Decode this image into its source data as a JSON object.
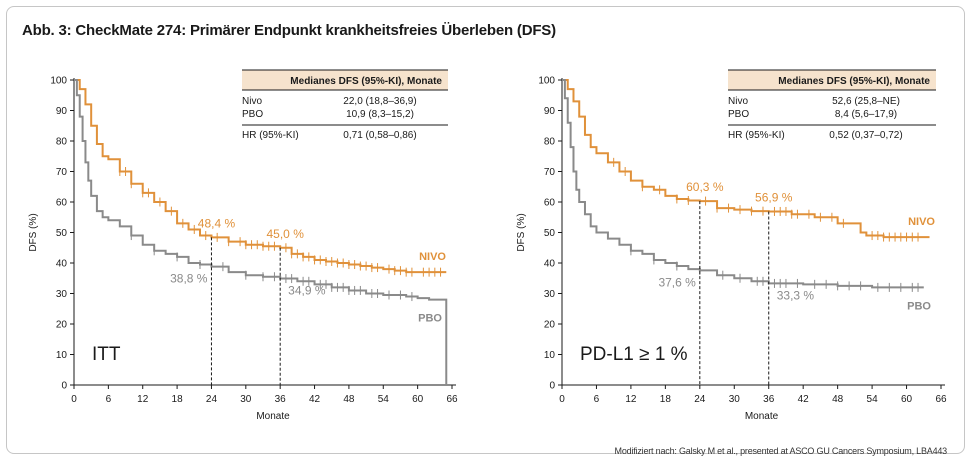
{
  "figure": {
    "title": "Abb. 3: CheckMate 274: Primärer Endpunkt krankheitsfreies Überleben (DFS)",
    "source": "Modifiziert nach: Galsky M et al., presented at ASCO GU Cancers Symposium, LBA443"
  },
  "colors": {
    "nivo": "#e0913a",
    "pbo": "#8a8a8a",
    "table_header_bg": "#f6e3cd"
  },
  "chart_data": [
    {
      "type": "line",
      "panel_label": "ITT",
      "xlabel": "Monate",
      "ylabel": "DFS (%)",
      "xlim": [
        0,
        66
      ],
      "ylim": [
        0,
        100
      ],
      "xticks": [
        0,
        6,
        12,
        18,
        24,
        30,
        36,
        42,
        48,
        54,
        60,
        66
      ],
      "yticks": [
        0,
        10,
        20,
        30,
        40,
        50,
        60,
        70,
        80,
        90,
        100
      ],
      "series": [
        {
          "name": "NIVO",
          "color": "#e0913a",
          "x": [
            0,
            1,
            2,
            3,
            4,
            5,
            6,
            8,
            10,
            12,
            14,
            16,
            18,
            20,
            22,
            24,
            27,
            30,
            33,
            36,
            38,
            40,
            42,
            44,
            46,
            48,
            50,
            52,
            54,
            56,
            58,
            60,
            62,
            65
          ],
          "y": [
            100,
            97,
            92,
            85,
            79,
            75,
            74,
            70,
            66,
            63,
            60,
            57,
            53,
            51,
            49,
            48.4,
            47,
            46,
            45.5,
            45,
            43,
            42,
            41,
            40.5,
            40,
            39.5,
            39,
            38.5,
            38,
            37.5,
            37,
            37,
            37,
            37
          ],
          "censor_x": [
            8,
            9,
            10,
            12,
            13,
            15,
            17,
            19,
            21,
            23,
            25,
            27,
            29,
            30,
            31,
            32,
            33,
            34,
            35,
            37,
            38,
            39,
            40,
            41,
            42,
            43,
            44,
            45,
            46,
            47,
            48,
            49,
            50,
            51,
            52,
            53,
            55,
            56,
            57,
            58,
            59,
            61,
            62,
            63,
            64
          ]
        },
        {
          "name": "PBO",
          "color": "#8a8a8a",
          "x": [
            0,
            0.5,
            1,
            1.5,
            2,
            2.5,
            3,
            4,
            5,
            6,
            8,
            10,
            12,
            14,
            16,
            18,
            20,
            22,
            24,
            27,
            30,
            33,
            36,
            39,
            42,
            45,
            48,
            51,
            54,
            58,
            60,
            62,
            65,
            65
          ],
          "y": [
            100,
            95,
            88,
            80,
            73,
            67,
            62,
            57,
            55,
            54,
            52,
            49,
            46,
            44,
            43,
            42,
            40,
            39.5,
            38.8,
            37,
            36,
            35.5,
            34.9,
            34,
            33,
            32,
            31,
            30,
            29.5,
            29,
            28.5,
            28,
            28,
            0
          ],
          "censor_x": [
            10,
            14,
            18,
            22,
            26,
            30,
            33,
            35,
            37,
            38,
            40,
            41,
            43,
            44,
            45,
            46,
            47,
            48,
            49,
            50,
            52,
            53,
            55,
            57,
            59
          ]
        }
      ],
      "annotations": [
        {
          "text": "48,4 %",
          "x": 24,
          "y": 48.4,
          "series": "NIVO"
        },
        {
          "text": "45,0 %",
          "x": 36,
          "y": 45,
          "series": "NIVO"
        },
        {
          "text": "38,8 %",
          "x": 24,
          "y": 38.8,
          "series": "PBO"
        },
        {
          "text": "34,9 %",
          "x": 36,
          "y": 34.9,
          "series": "PBO"
        }
      ],
      "series_labels": {
        "NIVO": "NIVO",
        "PBO": "PBO"
      },
      "table": {
        "header": "Medianes DFS (95%-KI), Monate",
        "rows": [
          {
            "label": "Nivo",
            "value": "22,0 (18,8–36,9)"
          },
          {
            "label": "PBO",
            "value": "10,9 (8,3–15,2)"
          },
          {
            "label": "HR (95%-KI)",
            "value": "0,71 (0,58–0,86)"
          }
        ]
      }
    },
    {
      "type": "line",
      "panel_label": "PD-L1 ≥ 1 %",
      "xlabel": "Monate",
      "ylabel": "DFS (%)",
      "xlim": [
        0,
        66
      ],
      "ylim": [
        0,
        100
      ],
      "xticks": [
        0,
        6,
        12,
        18,
        24,
        30,
        36,
        42,
        48,
        54,
        60,
        66
      ],
      "yticks": [
        0,
        10,
        20,
        30,
        40,
        50,
        60,
        70,
        80,
        90,
        100
      ],
      "series": [
        {
          "name": "NIVO",
          "color": "#e0913a",
          "x": [
            0,
            1,
            2,
            3,
            4,
            5,
            6,
            8,
            10,
            12,
            14,
            16,
            18,
            20,
            22,
            24,
            27,
            30,
            33,
            36,
            40,
            44,
            48,
            52,
            53,
            56,
            60,
            64
          ],
          "y": [
            100,
            97,
            93,
            88,
            82,
            78,
            76,
            73,
            70,
            67,
            65,
            64,
            62,
            61,
            60.5,
            60.3,
            58,
            57.5,
            57,
            56.9,
            56,
            55,
            53,
            50,
            49,
            48.5,
            48.5,
            48.5
          ],
          "censor_x": [
            9,
            11,
            14,
            17,
            20,
            22,
            25,
            27,
            29,
            31,
            33,
            35,
            37,
            38,
            39,
            40,
            41,
            43,
            45,
            47,
            49,
            54,
            55,
            56,
            57,
            58,
            59,
            60,
            61,
            62
          ]
        },
        {
          "name": "PBO",
          "color": "#8a8a8a",
          "x": [
            0,
            0.5,
            1,
            1.5,
            2,
            2.5,
            3,
            4,
            5,
            6,
            8,
            10,
            12,
            14,
            16,
            18,
            20,
            22,
            24,
            27,
            30,
            33,
            36,
            42,
            48,
            54,
            60,
            63
          ],
          "y": [
            100,
            94,
            86,
            78,
            70,
            64,
            60,
            56,
            52,
            50,
            48,
            46,
            44,
            43,
            41,
            40,
            39,
            38,
            37.6,
            36,
            35,
            34,
            33.3,
            33,
            32.5,
            32,
            32,
            32
          ],
          "censor_x": [
            12,
            16,
            20,
            24,
            28,
            31,
            34,
            35,
            37,
            38,
            39,
            41,
            44,
            46,
            48,
            50,
            52,
            55,
            57,
            59,
            61,
            62
          ]
        }
      ],
      "annotations": [
        {
          "text": "60,3 %",
          "x": 24,
          "y": 60.3,
          "series": "NIVO"
        },
        {
          "text": "56,9 %",
          "x": 36,
          "y": 56.9,
          "series": "NIVO"
        },
        {
          "text": "37,6 %",
          "x": 24,
          "y": 37.6,
          "series": "PBO"
        },
        {
          "text": "33,3 %",
          "x": 36,
          "y": 33.3,
          "series": "PBO"
        }
      ],
      "series_labels": {
        "NIVO": "NIVO",
        "PBO": "PBO"
      },
      "table": {
        "header": "Medianes DFS (95%-KI), Monate",
        "rows": [
          {
            "label": "Nivo",
            "value": "52,6 (25,8–NE)"
          },
          {
            "label": "PBO",
            "value": "8,4 (5,6–17,9)"
          },
          {
            "label": "HR (95%-KI)",
            "value": "0,52 (0,37–0,72)"
          }
        ]
      }
    }
  ]
}
